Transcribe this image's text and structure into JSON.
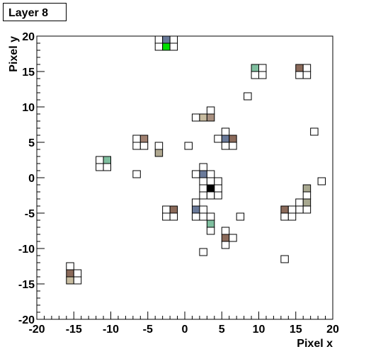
{
  "chart_data": {
    "type": "heatmap",
    "title": "Layer 8",
    "x_label": "Pixel x",
    "y_label": "Pixel y",
    "xlim": [
      -20,
      20
    ],
    "ylim": [
      -20,
      20
    ],
    "xticks": [
      -20,
      -15,
      -10,
      -5,
      0,
      5,
      10,
      15,
      20
    ],
    "yticks": [
      -20,
      -15,
      -10,
      -5,
      0,
      5,
      10,
      15,
      20
    ],
    "cells": {
      "x": [
        -4,
        -3,
        -2,
        -4,
        -3,
        -2,
        9,
        10,
        9,
        10,
        15,
        16,
        15,
        16,
        8,
        3,
        1,
        2,
        3,
        17,
        5,
        4,
        5,
        6,
        5,
        6,
        -7,
        -6,
        -7,
        -6,
        -4,
        -4,
        0,
        -12,
        -11,
        -12,
        -11,
        -7,
        2,
        1,
        2,
        3,
        2,
        3,
        4,
        2,
        3,
        4,
        2,
        3,
        4,
        18,
        16,
        16,
        15,
        16,
        15,
        16,
        13,
        14,
        13,
        14,
        -3,
        -2,
        -3,
        -2,
        1,
        1,
        2,
        1,
        2,
        3,
        3,
        3,
        7,
        5,
        5,
        6,
        5,
        2,
        13,
        -16,
        -16,
        -15,
        -16,
        -15
      ],
      "y": [
        19,
        19,
        19,
        18,
        18,
        18,
        15,
        15,
        14,
        14,
        15,
        15,
        14,
        14,
        11,
        9,
        8,
        8,
        8,
        6,
        6,
        5,
        5,
        5,
        4,
        4,
        5,
        5,
        4,
        4,
        4,
        3,
        4,
        2,
        2,
        1,
        1,
        0,
        1,
        0,
        0,
        0,
        -1,
        -1,
        -1,
        -2,
        -2,
        -2,
        -3,
        -3,
        -3,
        -1,
        -2,
        -3,
        -4,
        -4,
        -5,
        -5,
        -5,
        -5,
        -6,
        -6,
        -5,
        -5,
        -6,
        -6,
        -4,
        -5,
        -5,
        -6,
        -6,
        -6,
        -7,
        -8,
        -6,
        -8,
        -9,
        -9,
        -10,
        -11,
        -12,
        -13,
        -14,
        -14,
        -15,
        -15
      ],
      "color": [
        "#ffffff",
        "#6a7a9a",
        "#ffffff",
        "#ffffff",
        "#00e000",
        "#ffffff",
        "#7fbf9f",
        "#ffffff",
        "#ffffff",
        "#ffffff",
        "#8b6a5a",
        "#ffffff",
        "#ffffff",
        "#ffffff",
        "#ffffff",
        "#ffffff",
        "#ffffff",
        "#c8bca0",
        "#a89080",
        "#ffffff",
        "#ffffff",
        "#ffffff",
        "#6a7a9a",
        "#8b6a5a",
        "#ffffff",
        "#ffffff",
        "#ffffff",
        "#a08070",
        "#ffffff",
        "#ffffff",
        "#ffffff",
        "#b0a890",
        "#ffffff",
        "#ffffff",
        "#7fbf9f",
        "#ffffff",
        "#ffffff",
        "#ffffff",
        "#ffffff",
        "#ffffff",
        "#6a7a9a",
        "#ffffff",
        "#ffffff",
        "#ffffff",
        "#ffffff",
        "#ffffff",
        "#000000",
        "#ffffff",
        "#ffffff",
        "#ffffff",
        "#ffffff",
        "#ffffff",
        "#a8a890",
        "#ffffff",
        "#ffffff",
        "#a8a890",
        "#ffffff",
        "#ffffff",
        "#8b6a5a",
        "#ffffff",
        "#ffffff",
        "#ffffff",
        "#ffffff",
        "#8b6a5a",
        "#ffffff",
        "#ffffff",
        "#ffffff",
        "#6a7a9a",
        "#ffffff",
        "#ffffff",
        "#ffffff",
        "#ffffff",
        "#7fbf9f",
        "#ffffff",
        "#ffffff",
        "#ffffff",
        "#8b6a5a",
        "#ffffff",
        "#ffffff",
        "#ffffff",
        "#ffffff",
        "#ffffff",
        "#8b6a5a",
        "#ffffff",
        "#c8bca0",
        "#ffffff"
      ]
    }
  }
}
